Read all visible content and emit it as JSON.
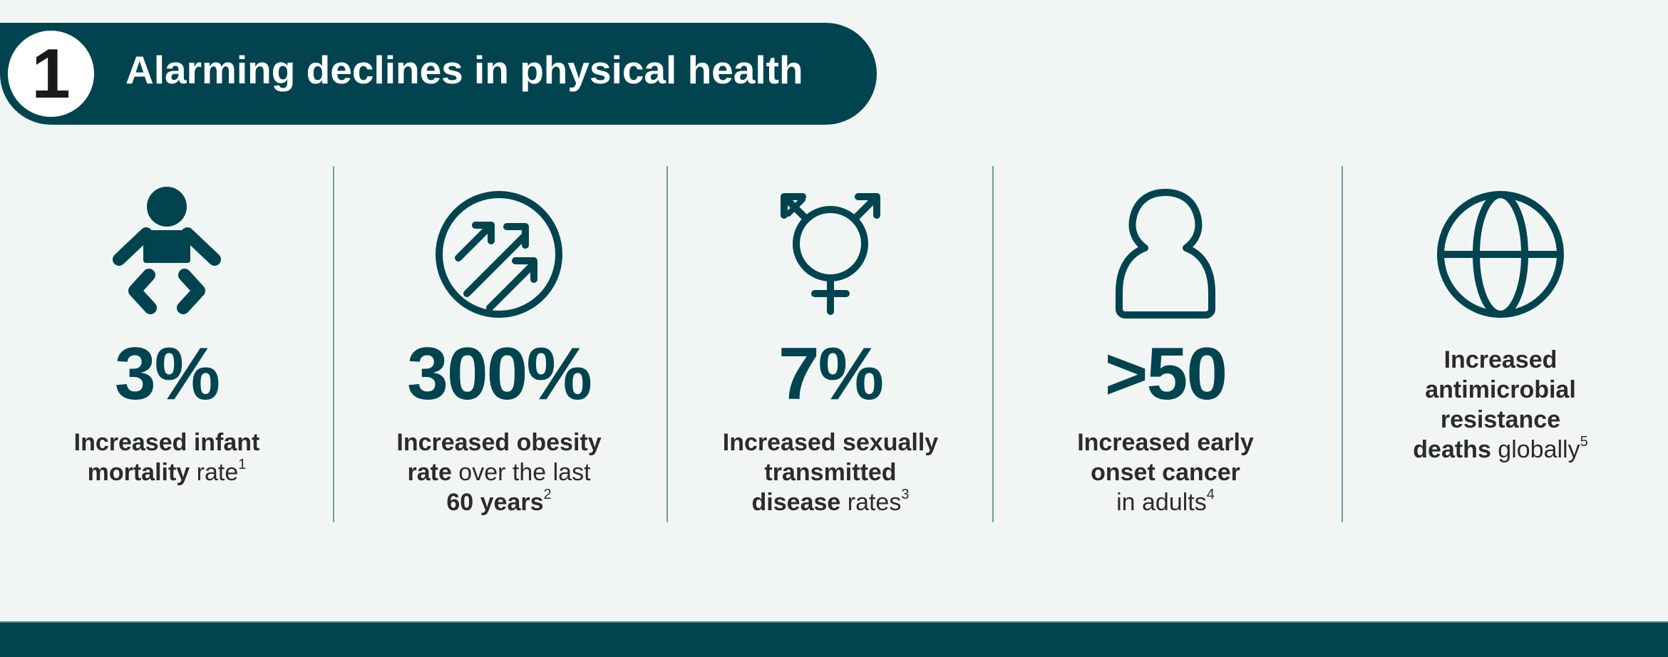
{
  "header": {
    "number": "1",
    "title": "Alarming declines in physical health"
  },
  "colors": {
    "primary": "#01444f",
    "background": "#f1f6f5",
    "divider": "#6e9ea3"
  },
  "stats": [
    {
      "icon": "baby-icon",
      "value": "3%",
      "line1": {
        "bold": "Increased infant",
        "normal": "",
        "sup": ""
      },
      "line2": {
        "bold": "mortality",
        "normal": " rate",
        "sup": "1"
      },
      "line3": {
        "bold": "",
        "normal": "",
        "sup": ""
      }
    },
    {
      "icon": "obesity-trend-icon",
      "value": "300%",
      "line1": {
        "bold": "Increased obesity",
        "normal": "",
        "sup": ""
      },
      "line2": {
        "bold": "rate",
        "normal": " over the last",
        "sup": ""
      },
      "line3": {
        "bold": "60 years",
        "normal": "",
        "sup": "2"
      }
    },
    {
      "icon": "sex-symbol-icon",
      "value": "7%",
      "line1": {
        "bold": "Increased sexually",
        "normal": "",
        "sup": ""
      },
      "line2": {
        "bold": "transmitted",
        "normal": "",
        "sup": ""
      },
      "line3": {
        "bold": "disease",
        "normal": " rates",
        "sup": "3"
      }
    },
    {
      "icon": "person-icon",
      "value": ">50",
      "line1": {
        "bold": "Increased early",
        "normal": "",
        "sup": ""
      },
      "line2": {
        "bold": "onset cancer",
        "normal": "",
        "sup": ""
      },
      "line3": {
        "bold": "",
        "normal": "in adults",
        "sup": "4"
      }
    },
    {
      "icon": "globe-icon",
      "value": "",
      "line1": {
        "bold": "Increased",
        "normal": "",
        "sup": ""
      },
      "line2": {
        "bold": "antimicrobial",
        "normal": "",
        "sup": ""
      },
      "line3": {
        "bold": "resistance",
        "normal": "",
        "sup": ""
      },
      "line4": {
        "bold": "deaths",
        "normal": " globally",
        "sup": "5"
      }
    }
  ]
}
